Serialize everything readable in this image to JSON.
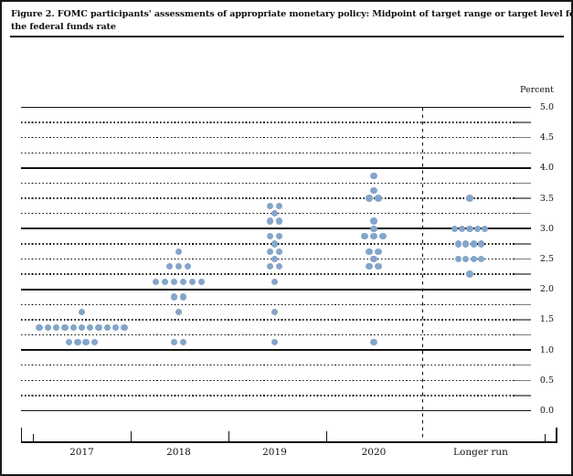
{
  "figure": {
    "title_line1": "Figure 2. FOMC participants' assessments of appropriate monetary policy: Midpoint of target range or target level for",
    "title_line2": "the federal funds rate",
    "unit_label": "Percent"
  },
  "chart_data": {
    "type": "scatter",
    "title": "Figure 2. FOMC participants' assessments of appropriate monetary policy: Midpoint of target range or target level for the federal funds rate",
    "ylabel": "Percent",
    "ylim": [
      0.0,
      5.0
    ],
    "y_gridline_step": 0.25,
    "y_gridlines_solid_at_integers": true,
    "y_axis_labels": [
      "5.0",
      "4.5",
      "4.0",
      "3.5",
      "3.0",
      "2.5",
      "2.0",
      "1.5",
      "1.0",
      "0.5",
      "0.0"
    ],
    "categories": [
      "2017",
      "2018",
      "2019",
      "2020",
      "Longer run"
    ],
    "separator": "dashed vertical line between 2020 and Longer run",
    "dot_color": "#84a5c9",
    "line_color": "#111111",
    "series": [
      {
        "name": "2017",
        "dots": [
          {
            "value": 1.625,
            "count": 1
          },
          {
            "value": 1.375,
            "count": 11
          },
          {
            "value": 1.125,
            "count": 4
          }
        ]
      },
      {
        "name": "2018",
        "dots": [
          {
            "value": 2.625,
            "count": 1
          },
          {
            "value": 2.375,
            "count": 3
          },
          {
            "value": 2.125,
            "count": 6
          },
          {
            "value": 1.875,
            "count": 2
          },
          {
            "value": 1.625,
            "count": 1
          },
          {
            "value": 1.125,
            "count": 2
          }
        ]
      },
      {
        "name": "2019",
        "dots": [
          {
            "value": 3.375,
            "count": 2
          },
          {
            "value": 3.25,
            "count": 1
          },
          {
            "value": 3.125,
            "count": 2
          },
          {
            "value": 2.875,
            "count": 2
          },
          {
            "value": 2.75,
            "count": 1
          },
          {
            "value": 2.625,
            "count": 2
          },
          {
            "value": 2.5,
            "count": 1
          },
          {
            "value": 2.375,
            "count": 2
          },
          {
            "value": 2.125,
            "count": 1
          },
          {
            "value": 1.625,
            "count": 1
          },
          {
            "value": 1.125,
            "count": 1
          }
        ]
      },
      {
        "name": "2020",
        "dots": [
          {
            "value": 3.875,
            "count": 1
          },
          {
            "value": 3.625,
            "count": 1
          },
          {
            "value": 3.5,
            "count": 2
          },
          {
            "value": 3.125,
            "count": 1
          },
          {
            "value": 3.0,
            "count": 1
          },
          {
            "value": 2.875,
            "count": 3
          },
          {
            "value": 2.625,
            "count": 2
          },
          {
            "value": 2.5,
            "count": 1
          },
          {
            "value": 2.375,
            "count": 2
          },
          {
            "value": 1.125,
            "count": 1
          }
        ]
      },
      {
        "name": "Longer run",
        "dots": [
          {
            "value": 3.5,
            "count": 1
          },
          {
            "value": 3.0,
            "count": 5
          },
          {
            "value": 2.75,
            "count": 4
          },
          {
            "value": 2.5,
            "count": 4
          },
          {
            "value": 2.25,
            "count": 1
          }
        ]
      }
    ]
  }
}
